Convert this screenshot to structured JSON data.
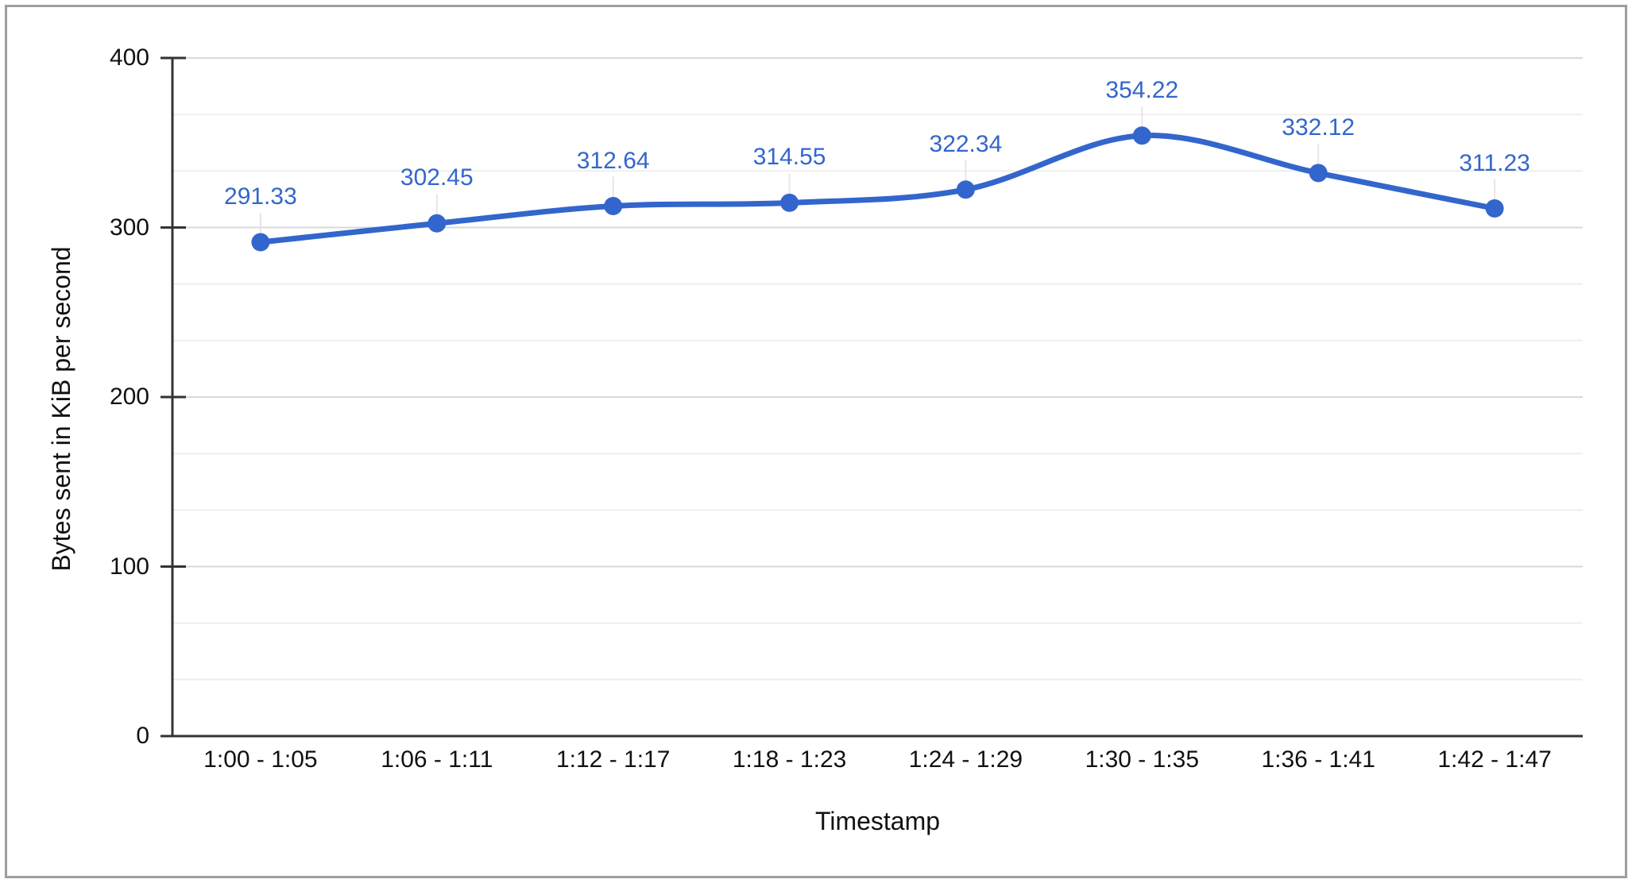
{
  "window": {
    "background": "#ffffff",
    "border_color": "#9e9e9e"
  },
  "chart_data": {
    "type": "line",
    "title": "",
    "categories": [
      "1:00 - 1:05",
      "1:06 - 1:11",
      "1:12 - 1:17",
      "1:18 - 1:23",
      "1:24 - 1:29",
      "1:30 - 1:35",
      "1:36 - 1:41",
      "1:42 - 1:47"
    ],
    "series": [
      {
        "values": [
          291.33,
          302.45,
          312.64,
          314.55,
          322.34,
          354.22,
          332.12,
          311.23
        ],
        "point_labels": [
          "291.33",
          "302.45",
          "312.64",
          "314.55",
          "322.34",
          "354.22",
          "332.12",
          "311.23"
        ],
        "color": "#3366cc",
        "marker": "circle",
        "smooth": true
      }
    ],
    "xlabel": "Timestamp",
    "ylabel": "Bytes sent in KiB per second",
    "ylim": [
      0,
      400
    ],
    "y_ticks": [
      0,
      100,
      200,
      300,
      400
    ],
    "y_tick_labels": [
      "0",
      "100",
      "200",
      "300",
      "400"
    ],
    "minor_gridlines_per_major": 2,
    "grid": {
      "major_color": "#d9d9d9",
      "minor_color": "#efefef"
    },
    "axis_color": "#333333",
    "tick_text_color": "#111111",
    "data_label_color": "#3366cc",
    "leader_line_color": "#e6e6e6",
    "legend": "none"
  }
}
